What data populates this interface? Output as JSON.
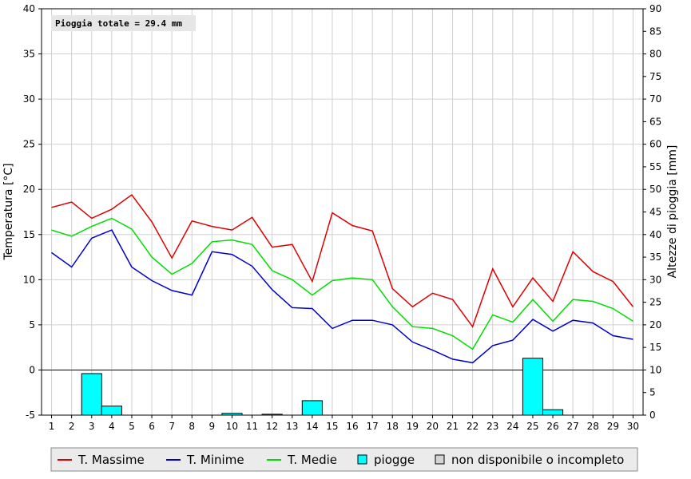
{
  "chart_data": {
    "type": "line",
    "title": "",
    "annotation": "Pioggia totale = 29.4 mm",
    "x": [
      1,
      2,
      3,
      4,
      5,
      6,
      7,
      8,
      9,
      10,
      11,
      12,
      13,
      14,
      15,
      16,
      17,
      18,
      19,
      20,
      21,
      22,
      23,
      24,
      25,
      26,
      27,
      28,
      29,
      30
    ],
    "xticklabels": [
      "1",
      "2",
      "3",
      "4",
      "5",
      "6",
      "7",
      "8",
      "9",
      "10",
      "11",
      "12",
      "13",
      "14",
      "15",
      "16",
      "17",
      "18",
      "19",
      "20",
      "21",
      "22",
      "23",
      "24",
      "25",
      "26",
      "27",
      "28",
      "29",
      "30"
    ],
    "ylabel_left": "Temperatura [°C]",
    "ylabel_right": "Altezze di pioggia [mm]",
    "ylim_left": [
      -5,
      40
    ],
    "yticks_left": [
      "-5",
      "0",
      "5",
      "10",
      "15",
      "20",
      "25",
      "30",
      "35",
      "40"
    ],
    "ylim_right": [
      0,
      90
    ],
    "yticks_right": [
      "0",
      "5",
      "10",
      "15",
      "20",
      "25",
      "30",
      "35",
      "40",
      "45",
      "50",
      "55",
      "60",
      "65",
      "70",
      "75",
      "80",
      "85",
      "90"
    ],
    "grid": true,
    "legend_position": "bottom",
    "series": [
      {
        "name": "T. Massime",
        "color": "#dd0000",
        "axis": "left",
        "values": [
          18.0,
          18.6,
          16.8,
          17.8,
          19.4,
          16.4,
          12.4,
          16.5,
          15.9,
          15.5,
          16.9,
          13.6,
          13.9,
          9.8,
          17.4,
          16.0,
          15.4,
          9.0,
          7.0,
          8.5,
          7.8,
          4.8,
          11.2,
          7.0,
          10.2,
          7.6,
          13.1,
          10.9,
          9.8,
          7.0
        ]
      },
      {
        "name": "T. Minime",
        "color": "#0000cc",
        "axis": "left",
        "values": [
          13.0,
          11.4,
          14.6,
          15.5,
          11.4,
          9.9,
          8.8,
          8.3,
          13.1,
          12.8,
          11.5,
          8.9,
          6.9,
          6.8,
          4.6,
          5.5,
          5.5,
          5.0,
          3.1,
          2.2,
          1.2,
          0.8,
          2.7,
          3.3,
          5.6,
          4.3,
          5.5,
          5.2,
          3.8,
          3.4
        ]
      },
      {
        "name": "T. Medie",
        "color": "#00dd00",
        "axis": "left",
        "values": [
          15.5,
          14.8,
          15.9,
          16.8,
          15.6,
          12.5,
          10.6,
          11.8,
          14.2,
          14.4,
          13.9,
          11.0,
          10.0,
          8.3,
          9.9,
          10.2,
          10.0,
          7.0,
          4.8,
          4.6,
          3.8,
          2.3,
          6.1,
          5.3,
          7.8,
          5.4,
          7.8,
          7.6,
          6.8,
          5.4
        ]
      },
      {
        "name": "piogge",
        "color": "#00ffff",
        "type": "bar",
        "axis": "right",
        "values": [
          0,
          0,
          9.2,
          2.0,
          0,
          0,
          0,
          0,
          0,
          0.4,
          0,
          0.2,
          0,
          3.2,
          0,
          0,
          0,
          0,
          0,
          0,
          0,
          0,
          0,
          0,
          12.6,
          1.2,
          0,
          0,
          0,
          0
        ]
      }
    ],
    "legend": [
      {
        "label": "T. Massime",
        "color": "#dd0000",
        "kind": "line"
      },
      {
        "label": "T. Minime",
        "color": "#0000cc",
        "kind": "line"
      },
      {
        "label": "T. Medie",
        "color": "#00dd00",
        "kind": "line"
      },
      {
        "label": "piogge",
        "color": "#00ffff",
        "kind": "box"
      },
      {
        "label": "non disponibile o incompleto",
        "color": "#d4d4d4",
        "kind": "box"
      }
    ]
  }
}
